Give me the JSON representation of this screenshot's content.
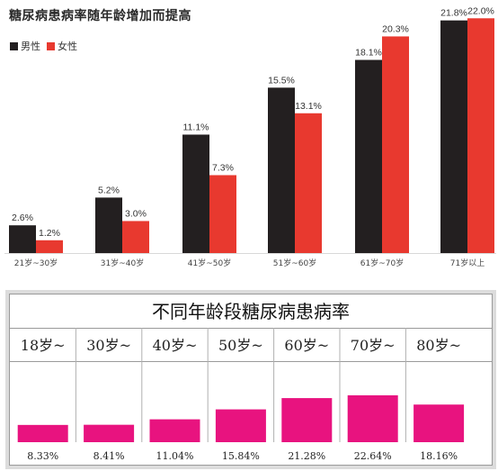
{
  "chart_data": [
    {
      "type": "bar",
      "title": "糖尿病患病率随年龄增加而提高",
      "categories": [
        "21岁~30岁",
        "31岁~40岁",
        "41岁~50岁",
        "51岁~60岁",
        "61岁~70岁",
        "71岁以上"
      ],
      "series": [
        {
          "name": "男性",
          "values": [
            2.6,
            5.2,
            11.1,
            15.5,
            18.1,
            21.8
          ],
          "labels": [
            "2.6%",
            "5.2%",
            "11.1%",
            "15.5%",
            "18.1%",
            "21.8%"
          ],
          "color": "#231f20"
        },
        {
          "name": "女性",
          "values": [
            1.2,
            3.0,
            7.3,
            13.1,
            20.3,
            22.0
          ],
          "labels": [
            "1.2%",
            "3.0%",
            "7.3%",
            "13.1%",
            "20.3%",
            "22.0%"
          ],
          "color": "#e8392f"
        }
      ],
      "ylim": [
        0,
        23
      ],
      "grid": false,
      "legend": "top-left"
    },
    {
      "type": "bar",
      "title": "不同年龄段糖尿病患病率",
      "categories": [
        "18岁~",
        "30岁~",
        "40岁~",
        "50岁~",
        "60岁~",
        "70岁~",
        "80岁~"
      ],
      "values": [
        8.33,
        8.41,
        11.04,
        15.84,
        21.28,
        22.64,
        18.16
      ],
      "labels": [
        "8.33%",
        "8.41%",
        "11.04%",
        "15.84%",
        "21.28%",
        "22.64%",
        "18.16%"
      ],
      "color": "#e8137f",
      "ylim": [
        0,
        28
      ],
      "grid": false
    }
  ]
}
